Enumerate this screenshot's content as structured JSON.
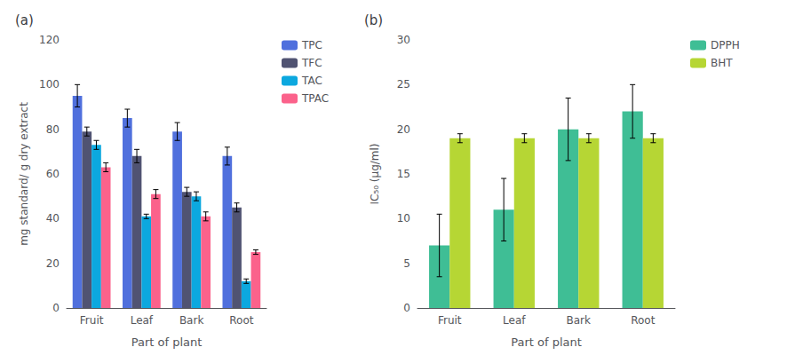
{
  "chart_data": [
    {
      "type": "bar",
      "title": "(a)",
      "categories": [
        "Fruit",
        "Leaf",
        "Bark",
        "Root"
      ],
      "series": [
        {
          "name": "TPC",
          "values": [
            95,
            85,
            79,
            68
          ],
          "errors": [
            5,
            4,
            4,
            4
          ]
        },
        {
          "name": "TFC",
          "values": [
            79,
            68,
            52,
            45
          ],
          "errors": [
            2,
            3,
            2,
            2
          ]
        },
        {
          "name": "TAC",
          "values": [
            73,
            41,
            50,
            12
          ],
          "errors": [
            2,
            1,
            2,
            1
          ]
        },
        {
          "name": "TPAC",
          "values": [
            63,
            51,
            41,
            25
          ],
          "errors": [
            2,
            2,
            2,
            1
          ]
        }
      ],
      "xlabel": "Part of plant",
      "ylabel": "mg standard/ g dry extract",
      "ylim": [
        0,
        120
      ],
      "yticks": [
        0,
        20,
        40,
        60,
        80,
        100,
        120
      ],
      "grid": false,
      "legend": "right"
    },
    {
      "type": "bar",
      "title": "(b)",
      "categories": [
        "Fruit",
        "Leaf",
        "Bark",
        "Root"
      ],
      "series": [
        {
          "name": "DPPH",
          "values": [
            7,
            11,
            20,
            22
          ],
          "errors": [
            3.5,
            3.5,
            3.5,
            3
          ]
        },
        {
          "name": "BHT",
          "values": [
            19,
            19,
            19,
            19
          ],
          "errors": [
            0.5,
            0.5,
            0.5,
            0.5
          ]
        }
      ],
      "xlabel": "Part of plant",
      "ylabel": "IC₅₀ (μg/ml)",
      "ylim": [
        0,
        30
      ],
      "yticks": [
        0,
        5,
        10,
        15,
        20,
        25,
        30
      ],
      "grid": false,
      "legend": "right"
    }
  ]
}
